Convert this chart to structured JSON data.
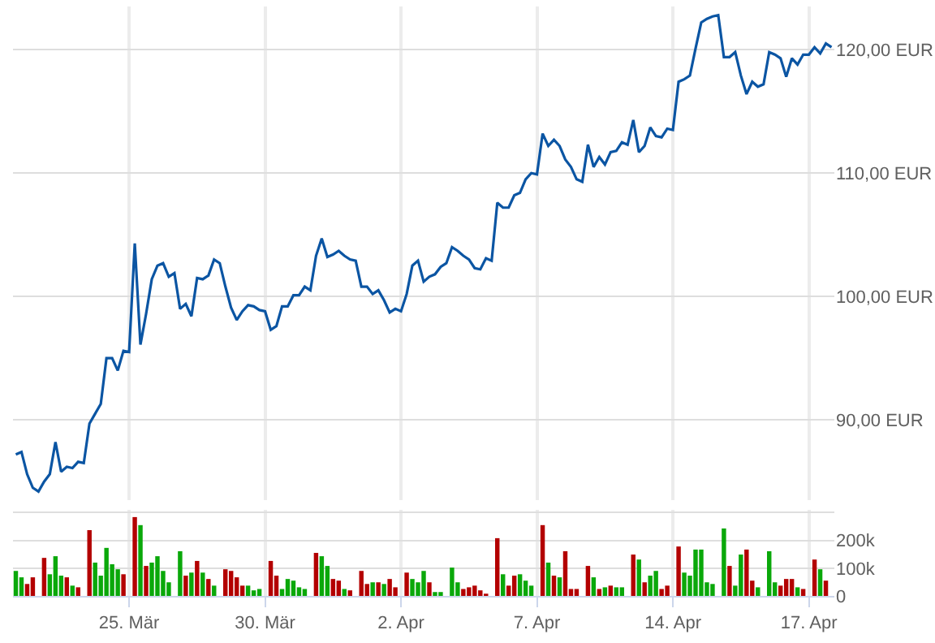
{
  "chart_data": [
    {
      "type": "line",
      "categories": [
        null,
        null,
        null,
        null,
        null,
        null,
        null,
        null,
        null,
        null,
        null,
        null,
        null,
        null,
        null,
        null,
        null,
        null,
        null,
        null,
        null,
        null,
        null,
        null,
        null,
        null,
        null,
        null,
        null,
        null,
        null,
        null,
        null,
        null,
        null,
        null,
        null,
        null,
        null,
        null,
        null,
        null,
        null,
        null,
        null,
        null,
        null,
        null,
        null,
        null,
        null,
        null,
        null,
        null,
        null,
        null,
        null,
        null,
        null,
        null,
        null,
        null,
        null,
        null,
        null,
        null,
        null,
        null,
        null,
        null,
        null,
        null,
        null,
        null,
        null,
        null,
        null,
        null,
        null,
        null,
        null,
        null,
        null,
        null,
        null,
        null,
        null,
        null,
        null,
        null,
        null,
        null,
        null,
        null,
        null,
        null,
        null,
        null,
        null,
        null,
        null,
        null,
        null,
        null,
        null,
        null,
        null,
        null,
        null,
        null,
        null,
        null,
        null,
        null,
        null,
        null,
        null,
        null,
        null,
        null,
        null,
        null,
        null,
        null,
        null,
        null,
        null,
        null,
        null,
        null,
        null,
        null,
        null,
        null,
        null,
        null,
        null,
        null,
        null,
        null,
        null,
        null,
        null,
        null,
        null
      ],
      "ylim": [
        83.5,
        123.5
      ],
      "yticks": [
        {
          "value": 90,
          "label": "90,00 EUR"
        },
        {
          "value": 100,
          "label": "100,00 EUR"
        },
        {
          "value": 110,
          "label": "110,00 EUR"
        },
        {
          "value": 120,
          "label": "120,00 EUR"
        }
      ],
      "grid": true,
      "tick_labels": "y",
      "series": [
        {
          "color": "#0b55a3",
          "values": [
            87.2,
            87.4,
            85.6,
            84.5,
            84.2,
            85.0,
            85.6,
            88.2,
            85.8,
            86.2,
            86.1,
            86.6,
            86.5,
            89.7,
            90.5,
            91.3,
            95.0,
            95.0,
            94.0,
            95.6,
            95.5,
            104.3,
            96.1,
            98.6,
            101.4,
            102.5,
            102.7,
            101.6,
            101.9,
            99.0,
            99.4,
            98.4,
            101.5,
            101.4,
            101.7,
            103.0,
            102.7,
            100.8,
            99.1,
            98.1,
            98.8,
            99.3,
            99.2,
            98.9,
            98.8,
            97.3,
            97.6,
            99.2,
            99.2,
            100.1,
            100.1,
            100.8,
            100.5,
            103.3,
            104.7,
            103.2,
            103.4,
            103.7,
            103.3,
            103.0,
            102.9,
            100.8,
            100.8,
            100.2,
            100.5,
            99.7,
            98.7,
            99.0,
            98.8,
            100.2,
            102.5,
            102.9,
            101.2,
            101.6,
            101.8,
            102.4,
            102.7,
            104.0,
            103.7,
            103.3,
            103.0,
            102.3,
            102.2,
            103.1,
            102.9,
            107.6,
            107.2,
            107.2,
            108.2,
            108.4,
            109.5,
            110.0,
            109.9,
            113.2,
            112.2,
            112.7,
            112.2,
            111.1,
            110.5,
            109.5,
            109.3,
            112.3,
            110.5,
            111.3,
            110.7,
            111.7,
            111.8,
            112.5,
            112.3,
            114.3,
            111.7,
            112.2,
            113.7,
            113.0,
            112.9,
            113.6,
            113.5,
            117.4,
            117.6,
            117.9,
            120.1,
            122.2,
            122.5,
            122.7,
            122.8,
            119.4,
            119.4,
            119.8,
            117.9,
            116.4,
            117.4,
            117.0,
            117.2,
            119.8,
            119.6,
            119.3,
            117.8,
            119.3,
            118.8,
            119.6,
            119.6,
            120.2,
            119.7,
            120.5,
            120.2
          ]
        }
      ]
    },
    {
      "type": "bar",
      "categories": [
        null,
        null,
        null,
        null,
        null,
        null,
        null,
        null,
        null,
        null,
        null,
        null,
        null,
        null,
        null,
        null,
        null,
        null,
        null,
        null,
        "25. Mär",
        null,
        null,
        null,
        null,
        null,
        null,
        null,
        null,
        null,
        null,
        null,
        null,
        null,
        null,
        null,
        null,
        null,
        null,
        null,
        null,
        null,
        null,
        null,
        "30. Mär",
        null,
        null,
        null,
        null,
        null,
        null,
        null,
        null,
        null,
        null,
        null,
        null,
        null,
        null,
        null,
        null,
        null,
        null,
        null,
        null,
        null,
        null,
        null,
        "2. Apr",
        null,
        null,
        null,
        null,
        null,
        null,
        null,
        null,
        null,
        null,
        null,
        null,
        null,
        null,
        null,
        null,
        null,
        null,
        null,
        null,
        null,
        null,
        null,
        "7. Apr",
        null,
        null,
        null,
        null,
        null,
        null,
        null,
        null,
        null,
        null,
        null,
        null,
        null,
        null,
        null,
        null,
        null,
        null,
        null,
        null,
        null,
        null,
        null,
        "14. Apr",
        null,
        null,
        null,
        null,
        null,
        null,
        null,
        null,
        null,
        null,
        null,
        null,
        null,
        null,
        null,
        null,
        null,
        null,
        null,
        null,
        null,
        null,
        null,
        "17. Apr",
        null,
        null,
        null,
        null
      ],
      "ylim": [
        0,
        310000
      ],
      "yticks": [
        0,
        {
          "value": 100000,
          "label": "100k"
        },
        {
          "value": 200000,
          "label": "200k"
        },
        {
          "value": 300000,
          "label": null
        }
      ],
      "grid": true,
      "values": [
        90000,
        67000,
        43000,
        67000,
        null,
        137000,
        78000,
        143000,
        73000,
        67000,
        37000,
        31000,
        null,
        237000,
        120000,
        73000,
        173000,
        114000,
        96000,
        78000,
        null,
        284000,
        255000,
        108000,
        120000,
        143000,
        90000,
        49000,
        null,
        161000,
        73000,
        84000,
        126000,
        84000,
        61000,
        37000,
        null,
        96000,
        90000,
        67000,
        37000,
        37000,
        20000,
        25000,
        null,
        126000,
        73000,
        25000,
        61000,
        55000,
        31000,
        25000,
        null,
        155000,
        143000,
        108000,
        61000,
        55000,
        25000,
        20000,
        null,
        90000,
        43000,
        49000,
        49000,
        43000,
        61000,
        31000,
        null,
        84000,
        61000,
        49000,
        90000,
        49000,
        14000,
        14000,
        null,
        102000,
        49000,
        25000,
        31000,
        37000,
        20000,
        8000,
        null,
        208000,
        78000,
        37000,
        73000,
        78000,
        55000,
        37000,
        null,
        255000,
        120000,
        73000,
        67000,
        161000,
        25000,
        25000,
        null,
        108000,
        67000,
        25000,
        31000,
        37000,
        31000,
        31000,
        null,
        149000,
        131000,
        49000,
        73000,
        90000,
        25000,
        37000,
        null,
        178000,
        84000,
        73000,
        167000,
        167000,
        49000,
        43000,
        null,
        243000,
        108000,
        37000,
        149000,
        167000,
        55000,
        31000,
        null,
        161000,
        49000,
        37000,
        61000,
        61000,
        31000,
        25000,
        null,
        131000,
        96000,
        55000,
        null
      ],
      "colors": [
        "#0aa80a",
        "#0aa80a",
        "#b30000",
        "#b30000",
        null,
        "#b30000",
        "#0aa80a",
        "#0aa80a",
        "#0aa80a",
        "#b30000",
        "#0aa80a",
        "#b30000",
        null,
        "#b30000",
        "#0aa80a",
        "#0aa80a",
        "#0aa80a",
        "#0aa80a",
        "#0aa80a",
        "#b30000",
        null,
        "#b30000",
        "#0aa80a",
        "#b30000",
        "#0aa80a",
        "#0aa80a",
        "#0aa80a",
        "#0aa80a",
        null,
        "#0aa80a",
        "#b30000",
        "#0aa80a",
        "#b30000",
        "#0aa80a",
        "#b30000",
        "#0aa80a",
        null,
        "#b30000",
        "#b30000",
        "#b30000",
        "#b30000",
        "#0aa80a",
        "#0aa80a",
        "#0aa80a",
        null,
        "#b30000",
        "#b30000",
        "#0aa80a",
        "#0aa80a",
        "#0aa80a",
        "#0aa80a",
        "#0aa80a",
        null,
        "#b30000",
        "#0aa80a",
        "#0aa80a",
        "#b30000",
        "#b30000",
        "#0aa80a",
        "#b30000",
        null,
        "#b30000",
        "#b30000",
        "#0aa80a",
        "#b30000",
        "#0aa80a",
        "#b30000",
        "#b30000",
        null,
        "#b30000",
        "#0aa80a",
        "#0aa80a",
        "#0aa80a",
        "#b30000",
        "#0aa80a",
        "#0aa80a",
        null,
        "#0aa80a",
        "#0aa80a",
        "#b30000",
        "#b30000",
        "#b30000",
        "#b30000",
        "#b30000",
        null,
        "#b30000",
        "#0aa80a",
        "#b30000",
        "#b30000",
        "#0aa80a",
        "#0aa80a",
        "#0aa80a",
        null,
        "#b30000",
        "#0aa80a",
        "#b30000",
        "#0aa80a",
        "#b30000",
        "#b30000",
        "#b30000",
        null,
        "#b30000",
        "#0aa80a",
        "#b30000",
        "#0aa80a",
        "#b30000",
        "#0aa80a",
        "#0aa80a",
        null,
        "#b30000",
        "#0aa80a",
        "#b30000",
        "#0aa80a",
        "#0aa80a",
        "#b30000",
        "#b30000",
        null,
        "#b30000",
        "#0aa80a",
        "#0aa80a",
        "#0aa80a",
        "#0aa80a",
        "#0aa80a",
        "#0aa80a",
        null,
        "#0aa80a",
        "#b30000",
        "#0aa80a",
        "#0aa80a",
        "#b30000",
        "#b30000",
        "#0aa80a",
        null,
        "#0aa80a",
        "#0aa80a",
        "#b30000",
        "#b30000",
        "#b30000",
        "#0aa80a",
        "#b30000",
        null,
        "#b30000",
        "#0aa80a",
        "#b30000",
        null
      ]
    }
  ]
}
